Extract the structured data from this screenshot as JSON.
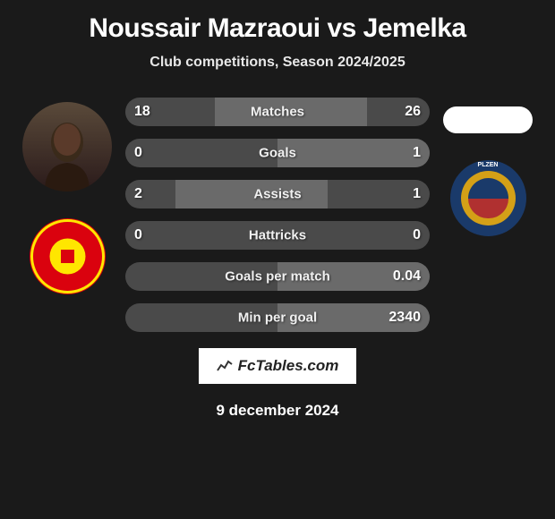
{
  "title": "Noussair Mazraoui vs Jemelka",
  "subtitle": "Club competitions, Season 2024/2025",
  "footer_logo": "FcTables.com",
  "footer_date": "9 december 2024",
  "player_left": {
    "club_name": "Manchester United"
  },
  "player_right": {
    "club_name": "FC Viktoria Plzen",
    "badge_text": "PLZEN"
  },
  "colors": {
    "background": "#1a1a1a",
    "bar_bg": "#4a4a4a",
    "bar_fill": "#6a6a6a",
    "text": "#ffffff"
  },
  "stats": [
    {
      "label": "Matches",
      "left_value": "18",
      "right_value": "26",
      "left_fill_pct": 41,
      "right_fill_pct": 59
    },
    {
      "label": "Goals",
      "left_value": "0",
      "right_value": "1",
      "left_fill_pct": 0,
      "right_fill_pct": 100
    },
    {
      "label": "Assists",
      "left_value": "2",
      "right_value": "1",
      "left_fill_pct": 67,
      "right_fill_pct": 33
    },
    {
      "label": "Hattricks",
      "left_value": "0",
      "right_value": "0",
      "left_fill_pct": 0,
      "right_fill_pct": 0
    },
    {
      "label": "Goals per match",
      "left_value": "",
      "right_value": "0.04",
      "left_fill_pct": 0,
      "right_fill_pct": 100
    },
    {
      "label": "Min per goal",
      "left_value": "",
      "right_value": "2340",
      "left_fill_pct": 0,
      "right_fill_pct": 100
    }
  ]
}
